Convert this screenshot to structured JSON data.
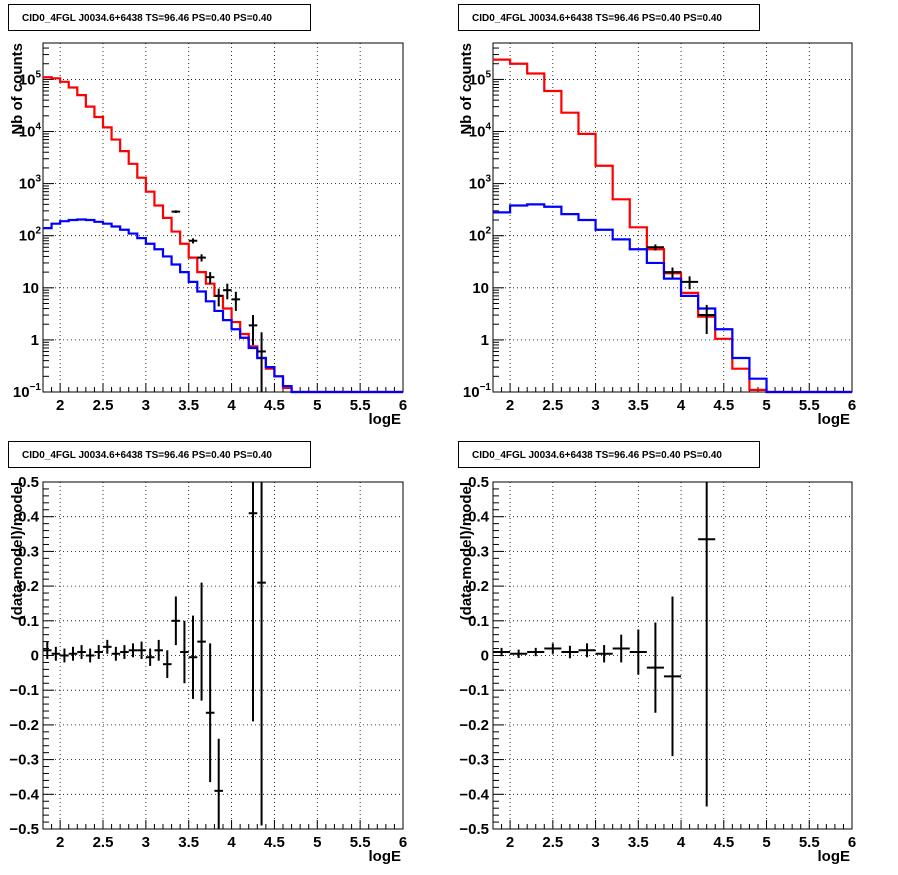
{
  "colors": {
    "data": "#000000",
    "total_model": "#ff0000",
    "component_model": "#0000ff",
    "grid": "#000000"
  },
  "chart_data": [
    {
      "type": "line",
      "title": "CID0_4FGL J0034.6+6438 TS=96.46 PS=0.40 PS=0.40",
      "xlabel": "logE",
      "ylabel": "Nb of counts",
      "xlim": [
        1.8,
        6.0
      ],
      "ylim": [
        0.1,
        500000
      ],
      "log_y": true,
      "grid": true,
      "x_ticks": [
        "2",
        "2.5",
        "3",
        "3.5",
        "4",
        "4.5",
        "5",
        "5.5",
        "6"
      ],
      "y_ticks": [
        {
          "value": 0.1,
          "base": "10",
          "exp": "−1"
        },
        {
          "value": 1,
          "label": "1"
        },
        {
          "value": 10,
          "label": "10"
        },
        {
          "value": 100,
          "base": "10",
          "exp": "2"
        },
        {
          "value": 1000,
          "base": "10",
          "exp": "3"
        },
        {
          "value": 10000,
          "base": "10",
          "exp": "4"
        },
        {
          "value": 100000,
          "base": "10",
          "exp": "5"
        }
      ],
      "bin_width": 0.1,
      "series": [
        {
          "style": "step",
          "color": "#ff0000",
          "x": [
            1.8,
            1.9,
            2.0,
            2.1,
            2.2,
            2.3,
            2.4,
            2.5,
            2.6,
            2.7,
            2.8,
            2.9,
            3.0,
            3.1,
            3.2,
            3.3,
            3.4,
            3.5,
            3.6,
            3.7,
            3.8,
            3.9,
            4.0,
            4.1,
            4.2,
            4.3,
            4.4,
            4.5,
            4.6,
            4.7,
            4.8,
            4.9,
            5.0,
            5.1,
            5.2,
            5.3,
            5.4,
            5.5,
            5.6,
            5.7,
            5.8,
            5.9
          ],
          "y": [
            110000,
            105000,
            90000,
            70000,
            50000,
            30000,
            19000,
            12000,
            7000,
            4200,
            2400,
            1300,
            700,
            380,
            220,
            120,
            70,
            38,
            20,
            12,
            7,
            4,
            2.2,
            1.3,
            0.75,
            0.45,
            0.28,
            0.2,
            0.12,
            0.1,
            0.1,
            0.1,
            0.1,
            0.1,
            0.1,
            0.1,
            0.1,
            0.1,
            0.1,
            0.1,
            0.1,
            0.1
          ]
        },
        {
          "style": "step",
          "color": "#0000ff",
          "x": [
            1.8,
            1.9,
            2.0,
            2.1,
            2.2,
            2.3,
            2.4,
            2.5,
            2.6,
            2.7,
            2.8,
            2.9,
            3.0,
            3.1,
            3.2,
            3.3,
            3.4,
            3.5,
            3.6,
            3.7,
            3.8,
            3.9,
            4.0,
            4.1,
            4.2,
            4.3,
            4.4,
            4.5,
            4.6,
            4.7,
            4.8,
            4.9,
            5.0,
            5.1,
            5.2,
            5.3,
            5.4,
            5.5,
            5.6,
            5.7,
            5.8,
            5.9
          ],
          "y": [
            140,
            170,
            190,
            200,
            205,
            200,
            185,
            170,
            150,
            130,
            110,
            90,
            70,
            55,
            40,
            28,
            20,
            13,
            8.5,
            5.5,
            3.6,
            2.4,
            1.6,
            1.1,
            0.7,
            0.45,
            0.3,
            0.2,
            0.13,
            0.1,
            0.1,
            0.1,
            0.1,
            0.1,
            0.1,
            0.1,
            0.1,
            0.1,
            0.1,
            0.1,
            0.1,
            0.1
          ]
        },
        {
          "style": "errorbar",
          "color": "#000000",
          "x": [
            3.35,
            3.55,
            3.65,
            3.75,
            3.85,
            3.95,
            4.05,
            4.25,
            4.35
          ],
          "y": [
            290,
            80,
            38,
            16,
            7,
            9,
            6,
            1.9,
            0.6
          ],
          "yerr_low": [
            17,
            9,
            6,
            4,
            2.6,
            3,
            2.4,
            1.1,
            0.6
          ],
          "yerr_high": [
            17,
            9,
            6,
            4,
            2.6,
            3,
            2.4,
            1.1,
            0.8
          ]
        }
      ]
    },
    {
      "type": "line",
      "title": "CID0_4FGL J0034.6+6438 TS=96.46 PS=0.40 PS=0.40",
      "xlabel": "logE",
      "ylabel": "Nb of counts",
      "xlim": [
        1.8,
        6.0
      ],
      "ylim": [
        0.1,
        500000
      ],
      "log_y": true,
      "grid": true,
      "x_ticks": [
        "2",
        "2.5",
        "3",
        "3.5",
        "4",
        "4.5",
        "5",
        "5.5",
        "6"
      ],
      "y_ticks": [
        {
          "value": 0.1,
          "base": "10",
          "exp": "−1"
        },
        {
          "value": 1,
          "label": "1"
        },
        {
          "value": 10,
          "label": "10"
        },
        {
          "value": 100,
          "base": "10",
          "exp": "2"
        },
        {
          "value": 1000,
          "base": "10",
          "exp": "3"
        },
        {
          "value": 10000,
          "base": "10",
          "exp": "4"
        },
        {
          "value": 100000,
          "base": "10",
          "exp": "5"
        }
      ],
      "bin_width": 0.2,
      "series": [
        {
          "style": "step",
          "color": "#ff0000",
          "x": [
            1.8,
            2.0,
            2.2,
            2.4,
            2.6,
            2.8,
            3.0,
            3.2,
            3.4,
            3.6,
            3.8,
            4.0,
            4.2,
            4.4,
            4.6,
            4.8,
            5.0,
            5.2,
            5.4,
            5.6,
            5.8
          ],
          "y": [
            240000,
            200000,
            130000,
            60000,
            23000,
            9000,
            2200,
            500,
            145,
            55,
            19,
            8,
            2.8,
            1.05,
            0.28,
            0.11,
            0.1,
            0.1,
            0.1,
            0.1,
            0.1
          ]
        },
        {
          "style": "step",
          "color": "#0000ff",
          "x": [
            1.8,
            2.0,
            2.2,
            2.4,
            2.6,
            2.8,
            3.0,
            3.2,
            3.4,
            3.6,
            3.8,
            4.0,
            4.2,
            4.4,
            4.6,
            4.8,
            5.0,
            5.2,
            5.4,
            5.6,
            5.8
          ],
          "y": [
            280,
            380,
            400,
            360,
            260,
            200,
            130,
            85,
            55,
            30,
            15,
            7,
            4,
            1.6,
            0.45,
            0.18,
            0.1,
            0.1,
            0.1,
            0.1,
            0.1
          ]
        },
        {
          "style": "errorbar",
          "color": "#000000",
          "x": [
            3.7,
            3.9,
            4.1,
            4.3
          ],
          "y": [
            60,
            20,
            13,
            3
          ],
          "yerr_low": [
            8,
            4.5,
            3.6,
            1.7
          ],
          "yerr_high": [
            8,
            4.5,
            3.6,
            1.7
          ]
        }
      ]
    },
    {
      "type": "scatter",
      "title": "CID0_4FGL J0034.6+6438 TS=96.46 PS=0.40 PS=0.40",
      "xlabel": "logE",
      "ylabel": "(data-model)/model",
      "xlim": [
        1.8,
        6.0
      ],
      "ylim": [
        -0.5,
        0.5
      ],
      "grid": true,
      "x_ticks": [
        "2",
        "2.5",
        "3",
        "3.5",
        "4",
        "4.5",
        "5",
        "5.5",
        "6"
      ],
      "y_ticks": [
        "0.5",
        "0.4",
        "0.3",
        "0.2",
        "0.1",
        "0",
        "−0.1",
        "−0.2",
        "−0.3",
        "−0.4",
        "−0.5"
      ],
      "x_half_width": 0.05,
      "points": [
        {
          "x": 1.85,
          "y": 0.015,
          "err": 0.025
        },
        {
          "x": 1.95,
          "y": 0.005,
          "err": 0.02
        },
        {
          "x": 2.05,
          "y": 0.0,
          "err": 0.02
        },
        {
          "x": 2.15,
          "y": 0.005,
          "err": 0.02
        },
        {
          "x": 2.25,
          "y": 0.01,
          "err": 0.02
        },
        {
          "x": 2.35,
          "y": 0.0,
          "err": 0.02
        },
        {
          "x": 2.45,
          "y": 0.01,
          "err": 0.02
        },
        {
          "x": 2.55,
          "y": 0.025,
          "err": 0.02
        },
        {
          "x": 2.65,
          "y": 0.005,
          "err": 0.02
        },
        {
          "x": 2.75,
          "y": 0.01,
          "err": 0.02
        },
        {
          "x": 2.85,
          "y": 0.015,
          "err": 0.02
        },
        {
          "x": 2.95,
          "y": 0.015,
          "err": 0.025
        },
        {
          "x": 3.05,
          "y": -0.005,
          "err": 0.025
        },
        {
          "x": 3.15,
          "y": 0.015,
          "err": 0.03
        },
        {
          "x": 3.25,
          "y": -0.025,
          "err": 0.04
        },
        {
          "x": 3.35,
          "y": 0.1,
          "err": 0.07
        },
        {
          "x": 3.45,
          "y": 0.01,
          "err": 0.09
        },
        {
          "x": 3.55,
          "y": -0.005,
          "err": 0.12
        },
        {
          "x": 3.65,
          "y": 0.04,
          "err": 0.17
        },
        {
          "x": 3.75,
          "y": -0.165,
          "err": 0.2
        },
        {
          "x": 3.85,
          "y": -0.39,
          "err": 0.15
        },
        {
          "x": 4.25,
          "y": 0.41,
          "err": 0.6
        },
        {
          "x": 4.35,
          "y": 0.21,
          "err": 0.7
        }
      ]
    },
    {
      "type": "scatter",
      "title": "CID0_4FGL J0034.6+6438 TS=96.46 PS=0.40 PS=0.40",
      "xlabel": "logE",
      "ylabel": "(data-model)/model",
      "xlim": [
        1.8,
        6.0
      ],
      "ylim": [
        -0.5,
        0.5
      ],
      "grid": true,
      "x_ticks": [
        "2",
        "2.5",
        "3",
        "3.5",
        "4",
        "4.5",
        "5",
        "5.5",
        "6"
      ],
      "y_ticks": [
        "0.5",
        "0.4",
        "0.3",
        "0.2",
        "0.1",
        "0",
        "−0.1",
        "−0.2",
        "−0.3",
        "−0.4",
        "−0.5"
      ],
      "x_half_width": 0.1,
      "points": [
        {
          "x": 1.9,
          "y": 0.01,
          "err": 0.012
        },
        {
          "x": 2.1,
          "y": 0.005,
          "err": 0.012
        },
        {
          "x": 2.3,
          "y": 0.01,
          "err": 0.012
        },
        {
          "x": 2.5,
          "y": 0.02,
          "err": 0.015
        },
        {
          "x": 2.7,
          "y": 0.01,
          "err": 0.018
        },
        {
          "x": 2.9,
          "y": 0.015,
          "err": 0.02
        },
        {
          "x": 3.1,
          "y": 0.005,
          "err": 0.025
        },
        {
          "x": 3.3,
          "y": 0.02,
          "err": 0.04
        },
        {
          "x": 3.5,
          "y": 0.01,
          "err": 0.065
        },
        {
          "x": 3.7,
          "y": -0.035,
          "err": 0.13
        },
        {
          "x": 3.9,
          "y": -0.06,
          "err": 0.23
        },
        {
          "x": 4.3,
          "y": 0.335,
          "err": 0.77
        }
      ]
    }
  ]
}
